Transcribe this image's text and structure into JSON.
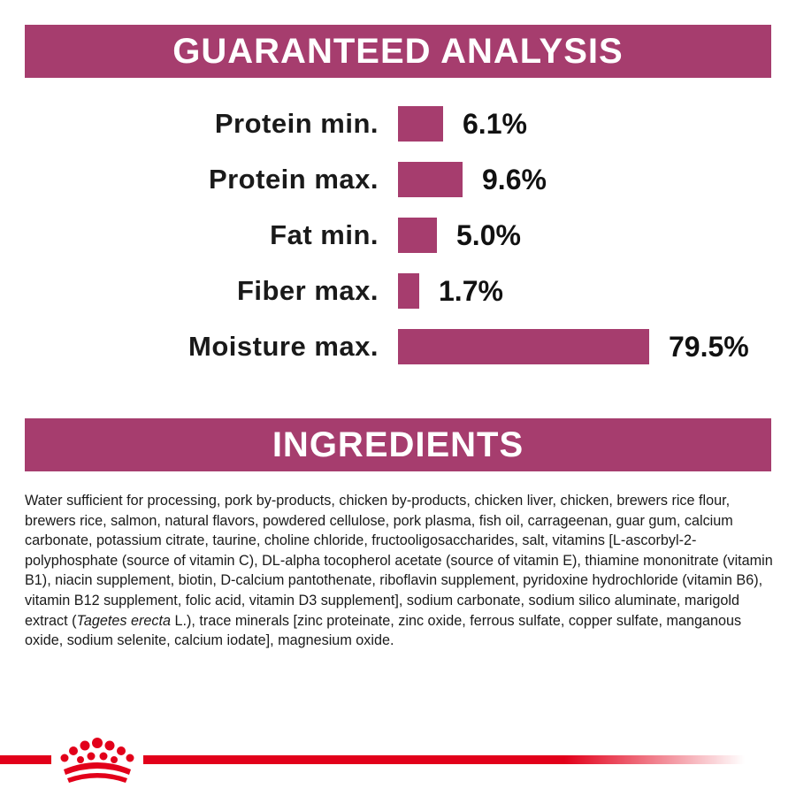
{
  "colors": {
    "banner": "#A63D6E",
    "bar": "#A63D6E",
    "brand_red": "#E2001A"
  },
  "guaranteed_analysis": {
    "title": "GUARANTEED ANALYSIS",
    "rows": [
      {
        "label": "Protein min.",
        "value_text": "6.1%",
        "value": 6.1
      },
      {
        "label": "Protein max.",
        "value_text": "9.6%",
        "value": 9.6
      },
      {
        "label": "Fat min.",
        "value_text": "5.0%",
        "value": 5.0
      },
      {
        "label": "Fiber max.",
        "value_text": "1.7%",
        "value": 1.7
      },
      {
        "label": "Moisture max.",
        "value_text": "79.5%",
        "value": 79.5
      }
    ]
  },
  "ingredients": {
    "title": "INGREDIENTS",
    "text_before_italic": "Water sufficient for processing, pork by-products, chicken by-products, chicken liver, chicken, brewers rice flour, brewers rice, salmon, natural flavors, powdered cellulose, pork plasma, fish oil, carrageenan, guar gum, calcium carbonate, potassium citrate, taurine, choline chloride, fructooligosaccharides, salt, vitamins [L-ascorbyl-2-polyphosphate (source of vitamin C), DL-alpha tocopherol acetate (source of vitamin E), thiamine mononitrate (vitamin B1), niacin supplement, biotin, D-calcium pantothenate, riboflavin supplement, pyridoxine hydrochloride (vitamin B6), vitamin B12 supplement, folic acid, vitamin D3 supplement], sodium carbonate, sodium silico aluminate, marigold extract (",
    "italic": "Tagetes erecta",
    "text_after_italic": " L.), trace minerals [zinc proteinate, zinc oxide, ferrous sulfate, copper sulfate, manganous oxide, sodium selenite, calcium iodate], magnesium oxide."
  },
  "footer": {
    "logo_icon": "royal-crown-icon"
  }
}
